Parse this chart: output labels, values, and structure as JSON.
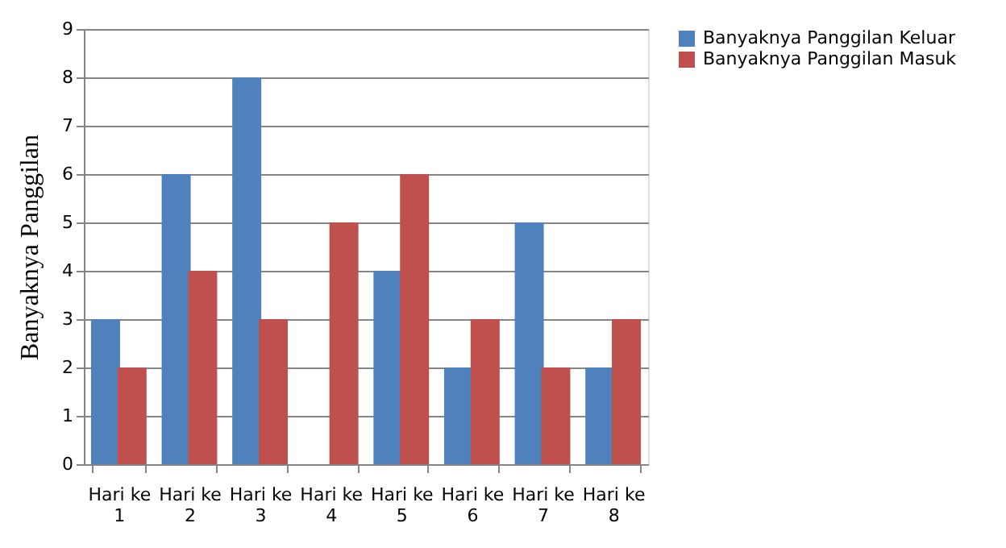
{
  "chart_data": {
    "type": "bar",
    "ylabel": "Banyaknya Panggilan",
    "categories": [
      "Hari ke 1",
      "Hari ke 2",
      "Hari ke 3",
      "Hari ke 4",
      "Hari ke 5",
      "Hari ke 6",
      "Hari ke 7",
      "Hari ke 8"
    ],
    "series": [
      {
        "name": "Banyaknya Panggilan Keluar",
        "color": "#4f81bd",
        "values": [
          3,
          6,
          8,
          0,
          4,
          2,
          5,
          2
        ]
      },
      {
        "name": "Banyaknya Panggilan Masuk",
        "color": "#c0504d",
        "values": [
          2,
          4,
          3,
          5,
          6,
          3,
          2,
          3
        ]
      }
    ],
    "ylim": [
      0,
      9
    ],
    "yticks": [
      0,
      1,
      2,
      3,
      4,
      5,
      6,
      7,
      8,
      9
    ],
    "grid": "y",
    "legend": "right"
  }
}
